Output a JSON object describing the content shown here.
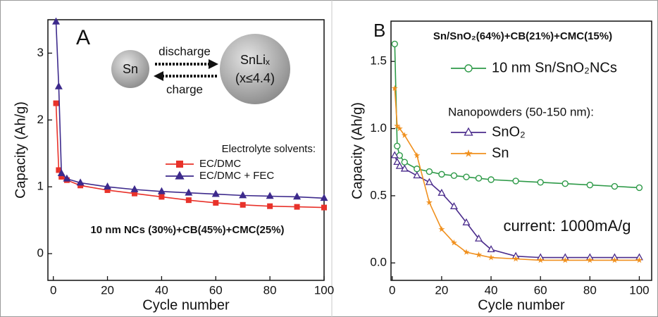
{
  "chart_data": [
    {
      "type": "line",
      "panel_label": "A",
      "annotation": "10 nm NCs (30%)+CB(45%)+CMC(25%)",
      "legend_title": "Electrolyte solvents:",
      "diagram": {
        "left": "Sn",
        "right": "SnLiₓ",
        "right_note": "(x≤4.4)",
        "top_arrow": "discharge",
        "bottom_arrow": "charge"
      },
      "x_label": "Cycle number",
      "y_label": "Capacity (Ah/g)",
      "x": [
        1,
        2,
        3,
        5,
        10,
        20,
        30,
        40,
        50,
        60,
        70,
        80,
        90,
        100
      ],
      "series": [
        {
          "name": "EC/DMC",
          "color": "#e8322a",
          "marker": "square",
          "values": [
            2.25,
            1.25,
            1.15,
            1.1,
            1.02,
            0.95,
            0.9,
            0.85,
            0.8,
            0.76,
            0.73,
            0.71,
            0.7,
            0.69
          ]
        },
        {
          "name": "EC/DMC + FEC",
          "color": "#3d2a8c",
          "marker": "triangle",
          "values": [
            3.47,
            2.5,
            1.2,
            1.12,
            1.06,
            1.0,
            0.96,
            0.93,
            0.91,
            0.89,
            0.87,
            0.86,
            0.85,
            0.83
          ]
        }
      ],
      "xlim": [
        -2,
        100
      ],
      "ylim": [
        -0.4,
        3.5
      ],
      "xticks": [
        0,
        20,
        40,
        60,
        80,
        100
      ],
      "yticks": [
        0,
        1,
        2,
        3
      ]
    },
    {
      "type": "line",
      "panel_label": "B",
      "title": "Sn/SnO₂(64%)+CB(21%)+CMC(15%)",
      "legend_title": "Nanopowders (50-150 nm):",
      "annotation": "current: 1000mA/g",
      "x_label": "Cycle number",
      "y_label": "Capacity (Ah/g)",
      "x": [
        1,
        2,
        3,
        5,
        10,
        15,
        20,
        25,
        30,
        35,
        40,
        50,
        60,
        70,
        80,
        90,
        100
      ],
      "series": [
        {
          "name": "10 nm Sn/SnO₂NCs",
          "color": "#2e9a48",
          "marker": "open-circle",
          "values": [
            1.63,
            0.87,
            0.8,
            0.75,
            0.7,
            0.68,
            0.66,
            0.65,
            0.64,
            0.63,
            0.62,
            0.61,
            0.6,
            0.59,
            0.58,
            0.57,
            0.56
          ]
        },
        {
          "name": "SnO₂",
          "color": "#4b2c8c",
          "marker": "open-triangle",
          "values": [
            0.8,
            0.75,
            0.72,
            0.7,
            0.65,
            0.6,
            0.52,
            0.42,
            0.3,
            0.18,
            0.1,
            0.05,
            0.04,
            0.04,
            0.04,
            0.04,
            0.04
          ]
        },
        {
          "name": "Sn",
          "color": "#f0901e",
          "marker": "star",
          "values": [
            1.3,
            1.02,
            1.0,
            0.95,
            0.8,
            0.45,
            0.25,
            0.15,
            0.08,
            0.06,
            0.04,
            0.03,
            0.02,
            0.02,
            0.02,
            0.02,
            0.02
          ]
        }
      ],
      "xlim": [
        -0.5,
        105
      ],
      "ylim": [
        -0.13,
        1.8
      ],
      "xticks": [
        0,
        20,
        40,
        60,
        80,
        100
      ],
      "yticks": [
        {
          "value": 0,
          "label": "0.0"
        },
        0.5,
        {
          "value": 1,
          "label": "1.0"
        },
        1.5
      ]
    }
  ]
}
